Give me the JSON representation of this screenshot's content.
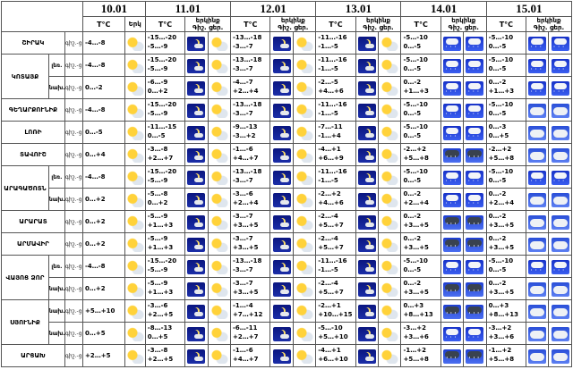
{
  "days": [
    "10.01",
    "11.01",
    "12.01",
    "13.01",
    "14.01",
    "15.01"
  ],
  "header": {
    "tc": "T°C",
    "night": "Գիշ.",
    "day": "ցեր.",
    "sky_day": "Երկ",
    "sky": "երկինք"
  },
  "rows": [
    {
      "region": "ՇԻՐԱԿ",
      "rs": 2,
      "sub": null,
      "subrs": 0,
      "tod": "գիշ.-ցեր.",
      "t10": "-4…-8",
      "temps": [
        [
          "-15…-20",
          "-5…-9"
        ],
        [
          "-13…-18",
          "-3…-7"
        ],
        [
          "-11…-16",
          "-1…-5"
        ],
        [
          "-5…-10",
          "0…-5"
        ],
        [
          "-5…-10",
          "0…-5"
        ]
      ],
      "icons": [
        "sun",
        "moon",
        "sun",
        "moon",
        "sun",
        "moon",
        "sun",
        "snow",
        "snow",
        "snow",
        "snow"
      ]
    },
    {
      "region": "ԿՈՏԱՅՔ",
      "rs": 4,
      "sub": "լեռ.",
      "subrs": 2,
      "tod": "գիշ.-ցեր.",
      "t10": "-4…-8",
      "temps": [
        [
          "-15…-20",
          "-5…-9"
        ],
        [
          "-13…-18",
          "-3…-7"
        ],
        [
          "-11…-16",
          "-1…-5"
        ],
        [
          "-5…-10",
          "0…-5"
        ],
        [
          "-5…-10",
          "0…-5"
        ]
      ],
      "icons": [
        "sun",
        "moon",
        "sun",
        "moon",
        "sun",
        "moon",
        "sun",
        "snow",
        "snow",
        "snow",
        "snow"
      ]
    },
    {
      "region": null,
      "rs": 0,
      "sub": "նախ.",
      "subrs": 2,
      "tod": "գիշ.-ցեր.",
      "t10": "0…-2",
      "temps": [
        [
          "-6…-9",
          "0…+2"
        ],
        [
          "-4…-7",
          "+2…+4"
        ],
        [
          "-2…-5",
          "+4…+6"
        ],
        [
          "0…-2",
          "+1…+3"
        ],
        [
          "0…-2",
          "+1…+3"
        ]
      ],
      "icons": [
        "sun",
        "moon",
        "sun",
        "moon",
        "sun",
        "moon",
        "sun",
        "snow",
        "snow",
        "snow",
        "snow"
      ]
    },
    {
      "region": "ԳԵՂԱՐՔՈՒՆԻՔ",
      "rs": 2,
      "sub": null,
      "subrs": 0,
      "tod": "գիշ.-ցեր.",
      "t10": "-4…-8",
      "temps": [
        [
          "-15…-20",
          "-5…-9"
        ],
        [
          "-13…-18",
          "-3…-7"
        ],
        [
          "-11…-16",
          "-1…-5"
        ],
        [
          "-5…-10",
          "0…-5"
        ],
        [
          "-5…-10",
          "0…-5"
        ]
      ],
      "icons": [
        "sun",
        "moon",
        "sun",
        "moon",
        "sun",
        "moon",
        "sun",
        "snow",
        "snow",
        "cloud",
        "cloud"
      ]
    },
    {
      "region": "ԼՈՌԻ",
      "rs": 2,
      "sub": null,
      "subrs": 0,
      "tod": "գիշ.-ցեր.",
      "t10": "0…-5",
      "temps": [
        [
          "-11…-15",
          "0…-5"
        ],
        [
          "-9…-13",
          "-3…+2"
        ],
        [
          "-7…-11",
          "-1…+4"
        ],
        [
          "-5…-10",
          "0…-5"
        ],
        [
          "0…-3",
          "0…+5"
        ]
      ],
      "icons": [
        "sun",
        "moon",
        "sun",
        "moon",
        "sun",
        "moon",
        "sun",
        "snow",
        "snow",
        "cloud",
        "cloud"
      ]
    },
    {
      "region": "ՏԱՎՈՒՇ",
      "rs": 2,
      "sub": null,
      "subrs": 0,
      "tod": "գիշ.-ցեր.",
      "t10": "0…+4",
      "temps": [
        [
          "-3…-8",
          "+2…+7"
        ],
        [
          "-1…-6",
          "+4…+7"
        ],
        [
          "-4…+1",
          "+6…+9"
        ],
        [
          "-2…+2",
          "+5…+8"
        ],
        [
          "-2…+2",
          "+5…+8"
        ]
      ],
      "icons": [
        "sun",
        "moon",
        "sun",
        "moon",
        "sun",
        "moon",
        "sun",
        "rain",
        "rain",
        "cloud",
        "cloud"
      ]
    },
    {
      "region": "ԱՐԱԳԱԾՈՏՆ",
      "rs": 4,
      "sub": "լեռ.",
      "subrs": 2,
      "tod": "գիշ.-ցեր.",
      "t10": "-4…-8",
      "temps": [
        [
          "-15…-20",
          "-5…-9"
        ],
        [
          "-13…-18",
          "-3…-7"
        ],
        [
          "-11…-16",
          "-1…-5"
        ],
        [
          "-5…-10",
          "0…-5"
        ],
        [
          "-5…-10",
          "0…-5"
        ]
      ],
      "icons": [
        "sun",
        "moon",
        "sun",
        "moon",
        "sun",
        "moon",
        "sun",
        "snow",
        "snow",
        "snow",
        "snow"
      ]
    },
    {
      "region": null,
      "rs": 0,
      "sub": "նախ.",
      "subrs": 2,
      "tod": "գիշ.-ցեր.",
      "t10": "0…+2",
      "temps": [
        [
          "-5…-8",
          "0…+2"
        ],
        [
          "-3…-6",
          "+2…+4"
        ],
        [
          "-2…+2",
          "+4…+6"
        ],
        [
          "0…-2",
          "+2…+4"
        ],
        [
          "0…-2",
          "+2…+4"
        ]
      ],
      "icons": [
        "sun",
        "moon",
        "sun",
        "moon",
        "sun",
        "moon",
        "sun",
        "snow",
        "snow",
        "cloud",
        "cloud"
      ]
    },
    {
      "region": "ԱՐԱՐԱՏ",
      "rs": 2,
      "sub": null,
      "subrs": 0,
      "tod": "գիշ.-ցեր.",
      "t10": "0…+2",
      "temps": [
        [
          "-5…-9",
          "+1…+3"
        ],
        [
          "-3…-7",
          "+3…+5"
        ],
        [
          "-2…-4",
          "+5…+7"
        ],
        [
          "0…-2",
          "+3…+5"
        ],
        [
          "0…-2",
          "+3…+5"
        ]
      ],
      "icons": [
        "sun",
        "moon",
        "sun",
        "moon",
        "sun",
        "moon",
        "sun",
        "rain",
        "rain",
        "cloud",
        "cloud"
      ]
    },
    {
      "region": "ԱՐՄԱՎԻՐ",
      "rs": 2,
      "sub": null,
      "subrs": 0,
      "tod": "գիշ.-ցեր.",
      "t10": "0…+2",
      "temps": [
        [
          "-5…-9",
          "+1…+3"
        ],
        [
          "-3…-7",
          "+3…+5"
        ],
        [
          "-2…-4",
          "+5…+7"
        ],
        [
          "0…-2",
          "+3…+5"
        ],
        [
          "0…-2",
          "+3…+5"
        ]
      ],
      "icons": [
        "sun",
        "moon",
        "sun",
        "moon",
        "sun",
        "moon",
        "sun",
        "rain",
        "rain",
        "cloud",
        "cloud"
      ]
    },
    {
      "region": "ՎԱՅՈՑ ՁՈՐ",
      "rs": 4,
      "sub": "լեռ.",
      "subrs": 2,
      "tod": "գիշ.-ցեր.",
      "t10": "-4…-8",
      "temps": [
        [
          "-15…-20",
          "-5…-9"
        ],
        [
          "-13…-18",
          "-3…-7"
        ],
        [
          "-11…-16",
          "-1…-5"
        ],
        [
          "-5…-10",
          "0…-5"
        ],
        [
          "-5…-10",
          "0…-5"
        ]
      ],
      "icons": [
        "sun",
        "moon",
        "sun",
        "moon",
        "sun",
        "moon",
        "sun",
        "snow",
        "snow",
        "snow",
        "snow"
      ]
    },
    {
      "region": null,
      "rs": 0,
      "sub": "նախ.",
      "subrs": 2,
      "tod": "գիշ.-ցեր.",
      "t10": "0…+2",
      "temps": [
        [
          "-5…-9",
          "+1…+3"
        ],
        [
          "-3…-7",
          "+3…+5"
        ],
        [
          "-2…-4",
          "+5…+7"
        ],
        [
          "0…-2",
          "+3…+5"
        ],
        [
          "0…-2",
          "+3…+5"
        ]
      ],
      "icons": [
        "sun",
        "moon",
        "sun",
        "moon",
        "sun",
        "moon",
        "sun",
        "rain",
        "rain",
        "cloud",
        "cloud"
      ]
    },
    {
      "region": "ՍՅՈՒՆԻՔ",
      "rs": 4,
      "sub": "նախ.",
      "subrs": 2,
      "tod": "գիշ.-ցեր.",
      "t10": "+5…+10",
      "temps": [
        [
          "-3…-6",
          "+2…+5"
        ],
        [
          "-1…-4",
          "+7…+12"
        ],
        [
          "-2…+1",
          "+10…+15"
        ],
        [
          "0…+3",
          "+8…+13"
        ],
        [
          "0…+3",
          "+8…+13"
        ]
      ],
      "icons": [
        "sun",
        "moon",
        "sun",
        "moon",
        "sun",
        "moon",
        "sun",
        "rain",
        "rain",
        "cloud",
        "cloud"
      ]
    },
    {
      "region": null,
      "rs": 0,
      "sub": "նախ.",
      "subrs": 2,
      "tod": "գիշ.-ցեր.",
      "t10": "0…+5",
      "temps": [
        [
          "-8…-13",
          "0…+5"
        ],
        [
          "-6…-11",
          "+2…+7"
        ],
        [
          "-5…-10",
          "+5…+10"
        ],
        [
          "-3…+2",
          "+3…+6"
        ],
        [
          "-3…+2",
          "+3…+6"
        ]
      ],
      "icons": [
        "sun",
        "moon",
        "sun",
        "moon",
        "sun",
        "moon",
        "sun",
        "snow",
        "snow",
        "cloud",
        "cloud"
      ]
    },
    {
      "region": "ԱՐՑԱԽ",
      "rs": 2,
      "sub": null,
      "subrs": 0,
      "tod": "գիշ.-ցեր.",
      "t10": "+2…+5",
      "temps": [
        [
          "-3…-8",
          "+2…+5"
        ],
        [
          "-1…-6",
          "+4…+7"
        ],
        [
          "-4…+1",
          "+6…+10"
        ],
        [
          "-1…+2",
          "+5…+8"
        ],
        [
          "-1…+2",
          "+5…+8"
        ]
      ],
      "icons": [
        "sun",
        "moon",
        "sun",
        "moon",
        "sun",
        "moon",
        "sun",
        "rain",
        "rain",
        "cloud",
        "cloud"
      ]
    }
  ]
}
